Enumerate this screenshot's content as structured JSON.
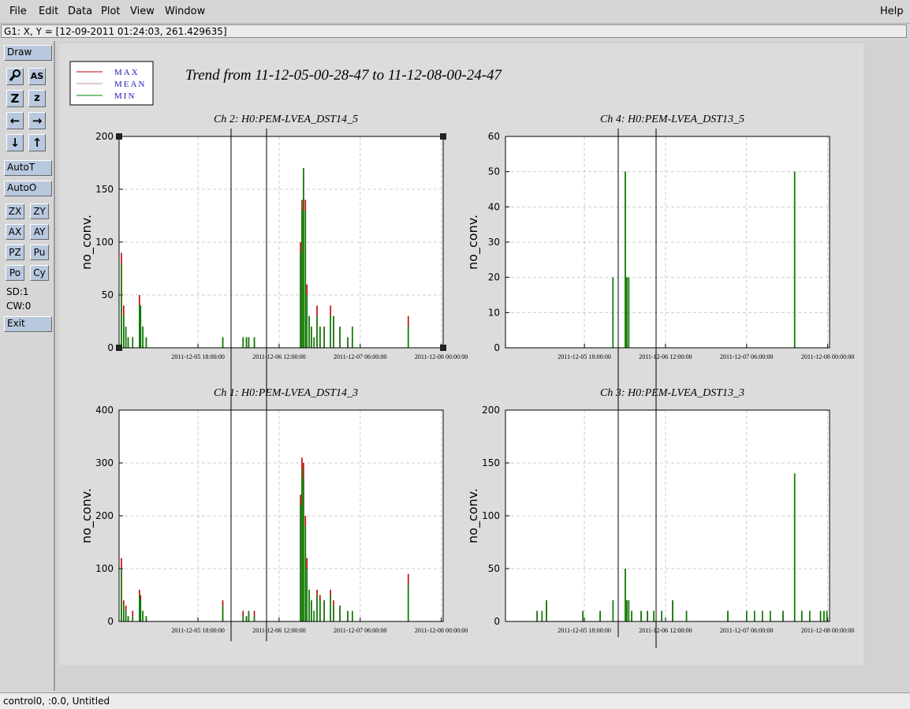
{
  "menu": [
    "File",
    "Edit",
    "Data",
    "Plot",
    "View",
    "Window"
  ],
  "help": "Help",
  "status": "G1: X, Y = [12-09-2011 01:24:03, 261.429635]",
  "toolbar": {
    "draw": "Draw",
    "icons": [
      "AS",
      "Z",
      "z",
      "←",
      "→",
      "↓",
      "↑"
    ],
    "auto": [
      "AutoT",
      "AutoO"
    ],
    "pairs": [
      [
        "ZX",
        "ZY"
      ],
      [
        "AX",
        "AY"
      ],
      [
        "PZ",
        "Pu"
      ],
      [
        "Po",
        "Cy"
      ]
    ],
    "info": [
      "SD:1",
      "CW:0"
    ],
    "exit": "Exit"
  },
  "footer": "control0, :0.0, Untitled",
  "trend_title": "Trend from 11-12-05-00-28-47 to 11-12-08-00-24-47",
  "chart_data": [
    {
      "type": "bar",
      "title": "Ch 2: H0:PEM-LVEA_DST14_5",
      "y_label": "no_conv.",
      "x": [
        "2011-12-05 01:00:00",
        "2011-12-05 01:30:00",
        "2011-12-05 02:00:00",
        "2011-12-05 02:30:00",
        "2011-12-05 03:30:00",
        "2011-12-05 05:00:00",
        "2011-12-05 05:15:00",
        "2011-12-05 05:45:00",
        "2011-12-05 06:30:00",
        "2011-12-05 23:30:00",
        "2011-12-06 04:00:00",
        "2011-12-06 04:45:00",
        "2011-12-06 05:15:00",
        "2011-12-06 06:30:00",
        "2011-12-06 16:45:00",
        "2011-12-06 17:05:00",
        "2011-12-06 17:25:00",
        "2011-12-06 17:50:00",
        "2011-12-06 18:10:00",
        "2011-12-06 18:40:00",
        "2011-12-06 19:10:00",
        "2011-12-06 19:45:00",
        "2011-12-06 20:25:00",
        "2011-12-06 21:05:00",
        "2011-12-06 22:00:00",
        "2011-12-06 23:25:00",
        "2011-12-07 00:05:00",
        "2011-12-07 01:30:00",
        "2011-12-07 03:15:00",
        "2011-12-07 04:15:00",
        "2011-12-07 16:40:00"
      ],
      "series": [
        {
          "name": "MAX",
          "color": "#c00000",
          "values": [
            90,
            40,
            20,
            10,
            10,
            50,
            40,
            20,
            10,
            10,
            10,
            10,
            10,
            10,
            100,
            140,
            170,
            140,
            60,
            30,
            20,
            10,
            40,
            20,
            20,
            40,
            30,
            20,
            10,
            20,
            30
          ]
        },
        {
          "name": "MEAN",
          "color": "#c89090",
          "values": [
            80,
            30,
            20,
            10,
            10,
            40,
            40,
            20,
            10,
            10,
            10,
            10,
            10,
            10,
            90,
            130,
            170,
            130,
            50,
            30,
            20,
            10,
            30,
            20,
            20,
            30,
            30,
            20,
            10,
            20,
            20
          ]
        },
        {
          "name": "MIN",
          "color": "#008000",
          "values": [
            80,
            30,
            20,
            10,
            10,
            40,
            40,
            20,
            10,
            10,
            10,
            10,
            10,
            10,
            90,
            130,
            170,
            130,
            50,
            30,
            20,
            10,
            30,
            20,
            20,
            30,
            30,
            20,
            10,
            20,
            20
          ]
        }
      ],
      "xlim": [
        "2011-12-05 00:28:47",
        "2011-12-08 00:24:47"
      ],
      "xticks": [
        "2011-12-05 18:00:00",
        "2011-12-06 12:00:00",
        "2011-12-07 06:00:00",
        "2011-12-08 00:00:00"
      ],
      "ylim": [
        0,
        200
      ],
      "yticks": [
        0,
        50,
        100,
        150,
        200
      ],
      "grid": true
    },
    {
      "type": "bar",
      "title": "Ch 4: H0:PEM-LVEA_DST13_5",
      "y_label": "no_conv.",
      "x": [
        "2011-12-06 00:20:00",
        "2011-12-06 03:05:00",
        "2011-12-06 03:25:00",
        "2011-12-06 03:50:00",
        "2011-12-07 16:40:00"
      ],
      "series": [
        {
          "name": "MAX",
          "color": "#c00000",
          "values": [
            20,
            50,
            20,
            20,
            50
          ]
        },
        {
          "name": "MEAN",
          "color": "#c89090",
          "values": [
            20,
            50,
            20,
            20,
            50
          ]
        },
        {
          "name": "MIN",
          "color": "#008000",
          "values": [
            20,
            50,
            20,
            20,
            50
          ]
        }
      ],
      "xlim": [
        "2011-12-05 00:28:47",
        "2011-12-08 00:24:47"
      ],
      "xticks": [
        "2011-12-05 18:00:00",
        "2011-12-06 12:00:00",
        "2011-12-07 06:00:00",
        "2011-12-08 00:00:00"
      ],
      "ylim": [
        0,
        60
      ],
      "yticks": [
        0,
        10,
        20,
        30,
        40,
        50,
        60
      ],
      "grid": true
    },
    {
      "type": "bar",
      "title": "Ch 1: H0:PEM-LVEA_DST14_3",
      "y_label": "no_conv.",
      "x": [
        "2011-12-05 01:00:00",
        "2011-12-05 01:30:00",
        "2011-12-05 02:00:00",
        "2011-12-05 02:30:00",
        "2011-12-05 03:30:00",
        "2011-12-05 05:00:00",
        "2011-12-05 05:15:00",
        "2011-12-05 05:45:00",
        "2011-12-05 06:30:00",
        "2011-12-05 23:30:00",
        "2011-12-06 04:00:00",
        "2011-12-06 04:45:00",
        "2011-12-06 05:15:00",
        "2011-12-06 06:30:00",
        "2011-12-06 16:45:00",
        "2011-12-06 17:05:00",
        "2011-12-06 17:25:00",
        "2011-12-06 17:50:00",
        "2011-12-06 18:10:00",
        "2011-12-06 18:40:00",
        "2011-12-06 19:10:00",
        "2011-12-06 19:45:00",
        "2011-12-06 20:25:00",
        "2011-12-06 21:05:00",
        "2011-12-06 22:00:00",
        "2011-12-06 23:25:00",
        "2011-12-07 00:05:00",
        "2011-12-07 01:30:00",
        "2011-12-07 03:15:00",
        "2011-12-07 04:15:00",
        "2011-12-07 16:40:00"
      ],
      "series": [
        {
          "name": "MAX",
          "color": "#c00000",
          "values": [
            120,
            40,
            30,
            10,
            20,
            60,
            50,
            20,
            10,
            40,
            20,
            10,
            20,
            20,
            240,
            310,
            300,
            200,
            120,
            60,
            40,
            20,
            60,
            50,
            40,
            60,
            40,
            30,
            20,
            20,
            90
          ]
        },
        {
          "name": "MEAN",
          "color": "#c89090",
          "values": [
            100,
            30,
            20,
            10,
            10,
            50,
            40,
            20,
            10,
            30,
            10,
            10,
            20,
            10,
            220,
            290,
            270,
            180,
            100,
            60,
            40,
            20,
            50,
            40,
            40,
            50,
            30,
            30,
            20,
            20,
            70
          ]
        },
        {
          "name": "MIN",
          "color": "#008000",
          "values": [
            100,
            30,
            20,
            10,
            10,
            50,
            40,
            20,
            10,
            30,
            10,
            10,
            20,
            10,
            220,
            290,
            270,
            180,
            100,
            60,
            40,
            20,
            50,
            40,
            40,
            50,
            30,
            30,
            20,
            20,
            70
          ]
        }
      ],
      "xlim": [
        "2011-12-05 00:28:47",
        "2011-12-08 00:24:47"
      ],
      "xticks": [
        "2011-12-05 18:00:00",
        "2011-12-06 12:00:00",
        "2011-12-07 06:00:00",
        "2011-12-08 00:00:00"
      ],
      "ylim": [
        0,
        400
      ],
      "yticks": [
        0,
        100,
        200,
        300,
        400
      ],
      "grid": true
    },
    {
      "type": "bar",
      "title": "Ch 3: H0:PEM-LVEA_DST13_3",
      "y_label": "no_conv.",
      "x": [
        "2011-12-05 07:30:00",
        "2011-12-05 08:35:00",
        "2011-12-05 09:35:00",
        "2011-12-05 17:40:00",
        "2011-12-05 21:30:00",
        "2011-12-06 00:20:00",
        "2011-12-06 03:05:00",
        "2011-12-06 03:25:00",
        "2011-12-06 03:50:00",
        "2011-12-06 04:30:00",
        "2011-12-06 06:35:00",
        "2011-12-06 08:00:00",
        "2011-12-06 09:25:00",
        "2011-12-06 11:10:00",
        "2011-12-06 13:35:00",
        "2011-12-06 16:40:00",
        "2011-12-07 01:50:00",
        "2011-12-07 06:00:00",
        "2011-12-07 07:45:00",
        "2011-12-07 09:30:00",
        "2011-12-07 11:15:00",
        "2011-12-07 14:05:00",
        "2011-12-07 16:40:00",
        "2011-12-07 18:15:00",
        "2011-12-07 20:00:00",
        "2011-12-07 22:25:00",
        "2011-12-07 23:10:00",
        "2011-12-07 23:50:00"
      ],
      "series": [
        {
          "name": "MAX",
          "color": "#c00000",
          "values": [
            10,
            10,
            20,
            10,
            10,
            20,
            50,
            20,
            20,
            10,
            10,
            10,
            10,
            10,
            20,
            10,
            10,
            10,
            10,
            10,
            10,
            10,
            140,
            10,
            10,
            10,
            10,
            10
          ]
        },
        {
          "name": "MEAN",
          "color": "#c89090",
          "values": [
            10,
            10,
            20,
            10,
            10,
            20,
            50,
            20,
            20,
            10,
            10,
            10,
            10,
            10,
            20,
            10,
            10,
            10,
            10,
            10,
            10,
            10,
            140,
            10,
            10,
            10,
            10,
            10
          ]
        },
        {
          "name": "MIN",
          "color": "#008000",
          "values": [
            10,
            10,
            20,
            10,
            10,
            20,
            50,
            20,
            20,
            10,
            10,
            10,
            10,
            10,
            20,
            10,
            10,
            10,
            10,
            10,
            10,
            10,
            140,
            10,
            10,
            10,
            10,
            10
          ]
        }
      ],
      "xlim": [
        "2011-12-05 00:28:47",
        "2011-12-08 00:24:47"
      ],
      "xticks": [
        "2011-12-05 18:00:00",
        "2011-12-06 12:00:00",
        "2011-12-07 06:00:00",
        "2011-12-08 00:00:00"
      ],
      "ylim": [
        0,
        200
      ],
      "yticks": [
        0,
        50,
        100,
        150,
        200
      ],
      "grid": true
    }
  ]
}
